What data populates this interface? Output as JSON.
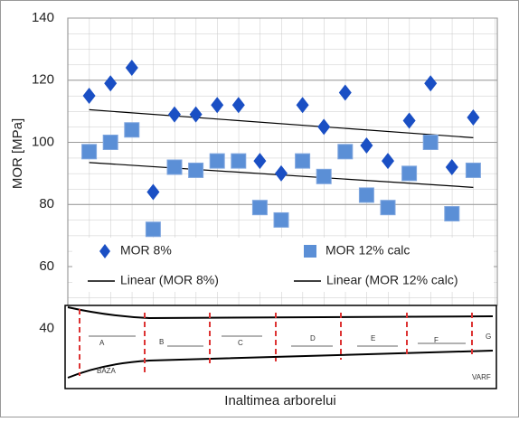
{
  "chart_data": {
    "type": "scatter",
    "y_label": "MOR [MPa]",
    "x_label": "Inaltimea arborelui",
    "categories": [
      null,
      null,
      null,
      null,
      null,
      null,
      null,
      null,
      null,
      null,
      null,
      null,
      null,
      null,
      null,
      null,
      null,
      null,
      null
    ],
    "series": [
      {
        "name": "MOR 8%",
        "color": "#1a4fc4",
        "marker": "diamond",
        "values": [
          115,
          119,
          124,
          84,
          109,
          109,
          112,
          112,
          94,
          90,
          112,
          105,
          116,
          99,
          94,
          107,
          119,
          92,
          108
        ]
      },
      {
        "name": "MOR 12% calc",
        "color": "#5b8fd6",
        "marker": "square",
        "values": [
          97,
          100,
          104,
          72,
          92,
          91,
          94,
          94,
          79,
          75,
          94,
          89,
          97,
          83,
          79,
          90,
          100,
          77,
          91
        ]
      }
    ],
    "trendlines": [
      {
        "name": "Linear (MOR 8%)",
        "color": "#000000",
        "values": [
          110.5,
          101.5
        ]
      },
      {
        "name": "Linear (MOR 12% calc)",
        "color": "#000000",
        "values": [
          93.5,
          85.5
        ]
      }
    ],
    "ylim": [
      20,
      140
    ],
    "yticks": [
      40,
      60,
      80,
      100,
      120,
      140
    ],
    "grid": true,
    "legend": "bottom"
  },
  "diagram": {
    "sections": [
      "A",
      "B",
      "C",
      "D",
      "E",
      "F",
      "G"
    ],
    "base": "BAZA",
    "top": "VARF"
  }
}
